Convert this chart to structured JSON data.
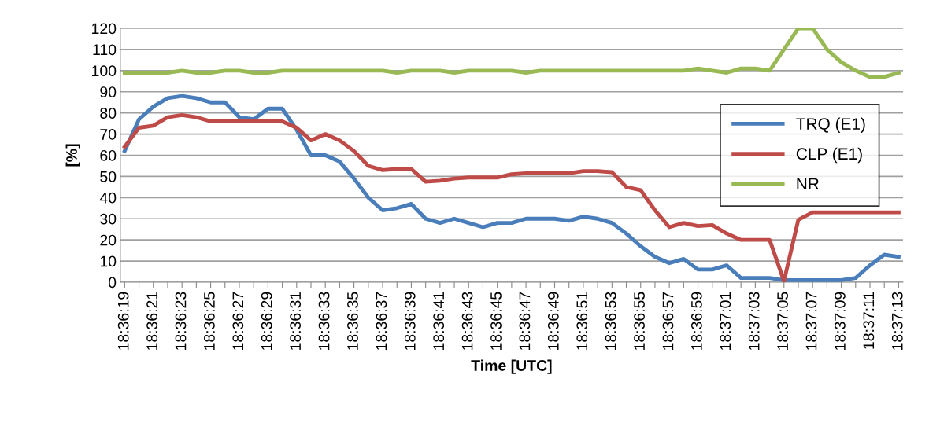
{
  "chart_data": {
    "type": "line",
    "xlabel": "Time [UTC]",
    "ylabel": "[%]",
    "categories": [
      "18:36:19",
      null,
      "18:36:21",
      null,
      "18:36:23",
      null,
      "18:36:25",
      null,
      "18:36:27",
      null,
      "18:36:29",
      null,
      "18:36:31",
      null,
      "18:36:33",
      null,
      "18:36:35",
      null,
      "18:36:37",
      null,
      "18:36:39",
      null,
      "18:36:41",
      null,
      "18:36:43",
      null,
      "18:36:45",
      null,
      "18:36:47",
      null,
      "18:36:49",
      null,
      "18:36:51",
      null,
      "18:36:53",
      null,
      "18:36:55",
      null,
      "18:36:57",
      null,
      "18:36:59",
      null,
      "18:37:01",
      null,
      "18:37:03",
      null,
      "18:37:05",
      null,
      "18:37:07",
      null,
      "18:37:09",
      null,
      "18:37:11",
      null,
      "18:37:13"
    ],
    "series": [
      {
        "name": "TRQ (E1)",
        "color": "#4a7ebb",
        "values": [
          62,
          77,
          83,
          87,
          88,
          87,
          85,
          85,
          78,
          77,
          82,
          82,
          72,
          60,
          60,
          57,
          49,
          40,
          34,
          35,
          37,
          30,
          28,
          30,
          28,
          26,
          28,
          28,
          30,
          30,
          30,
          29,
          31,
          30,
          28,
          23,
          17,
          12,
          9,
          11,
          6,
          6,
          8,
          2,
          2,
          2,
          1,
          1,
          1,
          1,
          1,
          2,
          8,
          13,
          12
        ]
      },
      {
        "name": "CLP (E1)",
        "color": "#be4b48",
        "values": [
          64,
          73,
          74,
          78,
          79,
          78,
          76,
          76,
          76,
          76,
          76,
          76,
          73,
          67,
          70,
          67,
          62,
          55,
          53,
          53.5,
          53.5,
          47.5,
          48,
          49,
          49.5,
          49.5,
          49.5,
          51,
          51.5,
          51.5,
          51.5,
          51.5,
          52.5,
          52.5,
          52,
          45,
          43.5,
          34,
          26,
          28,
          26.5,
          27,
          23,
          20,
          20,
          20,
          0.5,
          29.5,
          33,
          33,
          33,
          33,
          33,
          33,
          33
        ]
      },
      {
        "name": "NR",
        "color": "#98b954",
        "values": [
          99,
          99,
          99,
          99,
          100,
          99,
          99,
          100,
          100,
          99,
          99,
          100,
          100,
          100,
          100,
          100,
          100,
          100,
          100,
          99,
          100,
          100,
          100,
          99,
          100,
          100,
          100,
          100,
          99,
          100,
          100,
          100,
          100,
          100,
          100,
          100,
          100,
          100,
          100,
          100,
          101,
          100,
          99,
          101,
          101,
          100,
          110,
          120,
          120,
          110,
          104,
          100,
          97,
          97,
          99
        ]
      }
    ],
    "ylim": [
      0,
      120
    ],
    "yticks": [
      0,
      10,
      20,
      30,
      40,
      50,
      60,
      70,
      80,
      90,
      100,
      110,
      120
    ],
    "grid": "y",
    "legend": "center right",
    "marker": "none",
    "line_style": "solid"
  }
}
